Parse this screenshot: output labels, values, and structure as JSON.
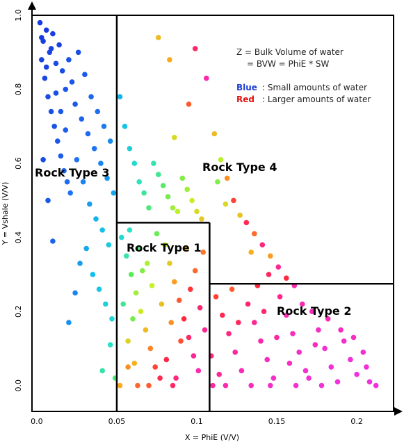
{
  "chart_data": {
    "type": "scatter",
    "xlabel": "X = PhiE (V/V)",
    "ylabel": "Y = Vshale (V/V)",
    "xlim": [
      -0.003,
      0.223
    ],
    "ylim": [
      -0.07,
      1.0
    ],
    "x_ticks": [
      "0.0",
      "0.05",
      "0.1",
      "0.15",
      "0.2"
    ],
    "x_tick_values": [
      0.0,
      0.05,
      0.1,
      0.15,
      0.2
    ],
    "y_ticks": [
      "0.0",
      "0.2",
      "0.4",
      "0.6",
      "0.8",
      "1.0"
    ],
    "y_tick_values": [
      0.0,
      0.2,
      0.4,
      0.6,
      0.8,
      1.0
    ],
    "color_by": "Z = Bulk Volume of water",
    "legend": {
      "line1": "Z = Bulk Volume of water",
      "line2": "= BVW = PhiE * SW",
      "blue_key": "Blue",
      "blue_text": ": Small amounts of water",
      "red_key": "Red",
      "red_text": ": Larger amounts of water",
      "placement": "top-right"
    },
    "colors": {
      "blue_key": "#1f3fd1",
      "red_key": "#e81010",
      "axes": "#000000"
    },
    "cutoffs": {
      "phie_rt3": 0.05,
      "phie_rt2": 0.108,
      "vsh_rt1": 0.44,
      "vsh_rt2": 0.275
    },
    "regions": [
      {
        "name": "Rock Type 3",
        "label": "Rock Type 3"
      },
      {
        "name": "Rock Type 4",
        "label": "Rock Type 4"
      },
      {
        "name": "Rock Type 1",
        "label": "Rock Type 1"
      },
      {
        "name": "Rock Type 2",
        "label": "Rock Type 2"
      }
    ],
    "series": [
      {
        "points": [
          [
            0.002,
            0.98,
            0.05
          ],
          [
            0.004,
            0.93,
            0.06
          ],
          [
            0.006,
            0.96,
            0.04
          ],
          [
            0.008,
            0.9,
            0.08
          ],
          [
            0.003,
            0.88,
            0.07
          ],
          [
            0.01,
            0.95,
            0.06
          ],
          [
            0.012,
            0.87,
            0.09
          ],
          [
            0.005,
            0.83,
            0.08
          ],
          [
            0.014,
            0.92,
            0.07
          ],
          [
            0.016,
            0.85,
            0.1
          ],
          [
            0.018,
            0.8,
            0.12
          ],
          [
            0.007,
            0.78,
            0.09
          ],
          [
            0.02,
            0.88,
            0.11
          ],
          [
            0.022,
            0.82,
            0.12
          ],
          [
            0.009,
            0.74,
            0.1
          ],
          [
            0.024,
            0.76,
            0.13
          ],
          [
            0.026,
            0.9,
            0.1
          ],
          [
            0.011,
            0.7,
            0.11
          ],
          [
            0.028,
            0.72,
            0.15
          ],
          [
            0.03,
            0.84,
            0.13
          ],
          [
            0.013,
            0.66,
            0.12
          ],
          [
            0.032,
            0.68,
            0.17
          ],
          [
            0.034,
            0.78,
            0.16
          ],
          [
            0.015,
            0.62,
            0.14
          ],
          [
            0.036,
            0.64,
            0.19
          ],
          [
            0.038,
            0.74,
            0.18
          ],
          [
            0.017,
            0.58,
            0.15
          ],
          [
            0.04,
            0.6,
            0.22
          ],
          [
            0.042,
            0.7,
            0.2
          ],
          [
            0.019,
            0.55,
            0.17
          ],
          [
            0.044,
            0.56,
            0.25
          ],
          [
            0.046,
            0.66,
            0.23
          ],
          [
            0.021,
            0.52,
            0.19
          ],
          [
            0.048,
            0.52,
            0.28
          ],
          [
            0.003,
            0.94,
            0.05
          ],
          [
            0.006,
            0.86,
            0.07
          ],
          [
            0.009,
            0.91,
            0.07
          ],
          [
            0.012,
            0.79,
            0.1
          ],
          [
            0.015,
            0.74,
            0.12
          ],
          [
            0.018,
            0.69,
            0.14
          ],
          [
            0.004,
            0.61,
            0.09
          ],
          [
            0.007,
            0.5,
            0.12
          ],
          [
            0.01,
            0.39,
            0.15
          ],
          [
            0.025,
            0.61,
            0.19
          ],
          [
            0.029,
            0.55,
            0.22
          ],
          [
            0.033,
            0.49,
            0.26
          ],
          [
            0.037,
            0.45,
            0.3
          ],
          [
            0.041,
            0.42,
            0.33
          ],
          [
            0.045,
            0.38,
            0.36
          ],
          [
            0.031,
            0.37,
            0.28
          ],
          [
            0.027,
            0.33,
            0.26
          ],
          [
            0.035,
            0.3,
            0.32
          ],
          [
            0.039,
            0.26,
            0.35
          ],
          [
            0.043,
            0.22,
            0.38
          ],
          [
            0.047,
            0.18,
            0.41
          ],
          [
            0.02,
            0.17,
            0.24
          ],
          [
            0.024,
            0.25,
            0.22
          ],
          [
            0.046,
            0.11,
            0.45
          ],
          [
            0.041,
            0.04,
            0.48
          ],
          [
            0.049,
            0.02,
            0.52
          ],
          [
            0.052,
            0.78,
            0.3
          ],
          [
            0.055,
            0.7,
            0.34
          ],
          [
            0.058,
            0.64,
            0.38
          ],
          [
            0.061,
            0.6,
            0.42
          ],
          [
            0.064,
            0.55,
            0.46
          ],
          [
            0.067,
            0.52,
            0.49
          ],
          [
            0.07,
            0.48,
            0.52
          ],
          [
            0.073,
            0.6,
            0.47
          ],
          [
            0.076,
            0.57,
            0.5
          ],
          [
            0.079,
            0.54,
            0.54
          ],
          [
            0.082,
            0.51,
            0.57
          ],
          [
            0.085,
            0.48,
            0.6
          ],
          [
            0.088,
            0.47,
            0.62
          ],
          [
            0.091,
            0.56,
            0.58
          ],
          [
            0.094,
            0.53,
            0.6
          ],
          [
            0.097,
            0.5,
            0.63
          ],
          [
            0.1,
            0.47,
            0.66
          ],
          [
            0.103,
            0.45,
            0.68
          ],
          [
            0.083,
            0.88,
            0.72
          ],
          [
            0.099,
            0.91,
            0.86
          ],
          [
            0.106,
            0.83,
            0.92
          ],
          [
            0.095,
            0.76,
            0.78
          ],
          [
            0.076,
            0.94,
            0.7
          ],
          [
            0.086,
            0.67,
            0.66
          ],
          [
            0.111,
            0.68,
            0.7
          ],
          [
            0.115,
            0.61,
            0.62
          ],
          [
            0.119,
            0.56,
            0.74
          ],
          [
            0.123,
            0.5,
            0.8
          ],
          [
            0.127,
            0.46,
            0.69
          ],
          [
            0.131,
            0.44,
            0.84
          ],
          [
            0.136,
            0.41,
            0.77
          ],
          [
            0.141,
            0.38,
            0.88
          ],
          [
            0.146,
            0.35,
            0.73
          ],
          [
            0.151,
            0.32,
            0.9
          ],
          [
            0.156,
            0.29,
            0.82
          ],
          [
            0.161,
            0.27,
            0.93
          ],
          [
            0.113,
            0.55,
            0.58
          ],
          [
            0.118,
            0.49,
            0.66
          ],
          [
            0.134,
            0.36,
            0.71
          ],
          [
            0.145,
            0.3,
            0.85
          ],
          [
            0.053,
            0.4,
            0.42
          ],
          [
            0.056,
            0.35,
            0.48
          ],
          [
            0.059,
            0.3,
            0.55
          ],
          [
            0.062,
            0.25,
            0.6
          ],
          [
            0.065,
            0.2,
            0.64
          ],
          [
            0.068,
            0.15,
            0.7
          ],
          [
            0.071,
            0.1,
            0.75
          ],
          [
            0.074,
            0.05,
            0.8
          ],
          [
            0.077,
            0.02,
            0.84
          ],
          [
            0.08,
            0.38,
            0.62
          ],
          [
            0.083,
            0.33,
            0.68
          ],
          [
            0.086,
            0.28,
            0.73
          ],
          [
            0.089,
            0.23,
            0.78
          ],
          [
            0.092,
            0.18,
            0.82
          ],
          [
            0.095,
            0.13,
            0.86
          ],
          [
            0.098,
            0.08,
            0.9
          ],
          [
            0.101,
            0.04,
            0.93
          ],
          [
            0.104,
            0.36,
            0.76
          ],
          [
            0.057,
            0.12,
            0.67
          ],
          [
            0.061,
            0.06,
            0.71
          ],
          [
            0.066,
            0.31,
            0.58
          ],
          [
            0.072,
            0.27,
            0.63
          ],
          [
            0.078,
            0.22,
            0.69
          ],
          [
            0.084,
            0.17,
            0.74
          ],
          [
            0.09,
            0.12,
            0.79
          ],
          [
            0.096,
            0.26,
            0.81
          ],
          [
            0.102,
            0.21,
            0.87
          ],
          [
            0.054,
            0.22,
            0.5
          ],
          [
            0.06,
            0.18,
            0.57
          ],
          [
            0.069,
            0.33,
            0.61
          ],
          [
            0.075,
            0.41,
            0.56
          ],
          [
            0.081,
            0.07,
            0.83
          ],
          [
            0.087,
            0.02,
            0.88
          ],
          [
            0.093,
            0.37,
            0.71
          ],
          [
            0.099,
            0.31,
            0.77
          ],
          [
            0.105,
            0.15,
            0.9
          ],
          [
            0.058,
            0.42,
            0.45
          ],
          [
            0.063,
            0.37,
            0.52
          ],
          [
            0.07,
            0.0,
            0.78
          ],
          [
            0.085,
            0.0,
            0.86
          ],
          [
            0.112,
            0.24,
            0.8
          ],
          [
            0.116,
            0.19,
            0.84
          ],
          [
            0.12,
            0.14,
            0.88
          ],
          [
            0.124,
            0.09,
            0.91
          ],
          [
            0.128,
            0.04,
            0.94
          ],
          [
            0.132,
            0.22,
            0.86
          ],
          [
            0.136,
            0.17,
            0.9
          ],
          [
            0.14,
            0.12,
            0.92
          ],
          [
            0.144,
            0.07,
            0.95
          ],
          [
            0.148,
            0.02,
            0.97
          ],
          [
            0.152,
            0.24,
            0.89
          ],
          [
            0.156,
            0.19,
            0.93
          ],
          [
            0.16,
            0.14,
            0.95
          ],
          [
            0.164,
            0.09,
            0.97
          ],
          [
            0.168,
            0.04,
            0.98
          ],
          [
            0.172,
            0.2,
            0.94
          ],
          [
            0.176,
            0.15,
            0.96
          ],
          [
            0.18,
            0.1,
            0.98
          ],
          [
            0.184,
            0.05,
            0.99
          ],
          [
            0.188,
            0.01,
            1.0
          ],
          [
            0.192,
            0.12,
            0.97
          ],
          [
            0.196,
            0.07,
            0.99
          ],
          [
            0.2,
            0.03,
            1.0
          ],
          [
            0.204,
            0.09,
            0.98
          ],
          [
            0.208,
            0.01,
            1.0
          ],
          [
            0.212,
            0.0,
            1.0
          ],
          [
            0.114,
            0.03,
            0.9
          ],
          [
            0.122,
            0.26,
            0.78
          ],
          [
            0.138,
            0.27,
            0.82
          ],
          [
            0.158,
            0.06,
            0.96
          ],
          [
            0.166,
            0.22,
            0.92
          ],
          [
            0.174,
            0.11,
            0.95
          ],
          [
            0.182,
            0.18,
            0.93
          ],
          [
            0.19,
            0.15,
            0.95
          ],
          [
            0.198,
            0.13,
            0.96
          ],
          [
            0.206,
            0.05,
            0.99
          ],
          [
            0.126,
            0.17,
            0.85
          ],
          [
            0.142,
            0.2,
            0.87
          ],
          [
            0.15,
            0.13,
            0.91
          ],
          [
            0.17,
            0.02,
            0.99
          ],
          [
            0.057,
            0.05,
            0.74
          ],
          [
            0.063,
            0.0,
            0.77
          ],
          [
            0.052,
            0.0,
            0.72
          ],
          [
            0.109,
            0.08,
            0.88
          ],
          [
            0.11,
            0.0,
            0.91
          ],
          [
            0.118,
            0.0,
            0.93
          ],
          [
            0.134,
            0.0,
            0.95
          ],
          [
            0.146,
            0.0,
            0.97
          ],
          [
            0.162,
            0.0,
            0.98
          ],
          [
            0.178,
            0.0,
            0.99
          ]
        ]
      }
    ]
  }
}
